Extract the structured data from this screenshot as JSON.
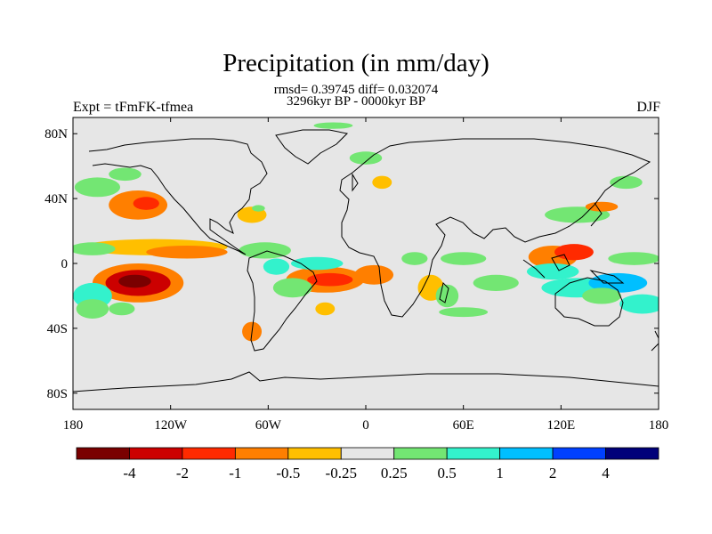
{
  "title": "Precipitation (in mm/day)",
  "stats_line": "rmsd= 0.39745 diff= 0.032074",
  "period_line": "3296kyr BP - 0000kyr BP",
  "experiment_label": "Expt = tFmFK-tfmea",
  "season_label": "DJF",
  "map": {
    "projection": "cylindrical-equidistant",
    "lon_range": [
      -180,
      180
    ],
    "lat_range": [
      -90,
      90
    ],
    "background_color": "#e6e6e6",
    "x_ticks": [
      {
        "lon": -180,
        "label": "180"
      },
      {
        "lon": -120,
        "label": "120W"
      },
      {
        "lon": -60,
        "label": "60W"
      },
      {
        "lon": 0,
        "label": "0"
      },
      {
        "lon": 60,
        "label": "60E"
      },
      {
        "lon": 120,
        "label": "120E"
      },
      {
        "lon": 180,
        "label": "180"
      }
    ],
    "y_ticks": [
      {
        "lat": 80,
        "label": "80N"
      },
      {
        "lat": 40,
        "label": "40N"
      },
      {
        "lat": 0,
        "label": "0"
      },
      {
        "lat": -40,
        "label": "40S"
      },
      {
        "lat": -80,
        "label": "80S"
      }
    ]
  },
  "colorbar": {
    "levels": [
      "-4",
      "-2",
      "-1",
      "-0.5",
      "-0.25",
      "0.25",
      "0.5",
      "1",
      "2",
      "4"
    ],
    "colors": [
      "#7a0000",
      "#cc0000",
      "#ff2a00",
      "#ff7f00",
      "#ffbf00",
      "#e6e6e6",
      "#73e673",
      "#33f2cc",
      "#00bfff",
      "#0040ff",
      "#00007a"
    ]
  },
  "anomalies": [
    {
      "lon": -140,
      "lat": -12,
      "rx": 28,
      "ry": 12,
      "level": 3
    },
    {
      "lon": -140,
      "lat": -12,
      "rx": 20,
      "ry": 8,
      "level": 1
    },
    {
      "lon": -142,
      "lat": -11,
      "rx": 10,
      "ry": 4,
      "level": 0
    },
    {
      "lon": -130,
      "lat": 10,
      "rx": 45,
      "ry": 5,
      "level": 4
    },
    {
      "lon": -110,
      "lat": 7,
      "rx": 25,
      "ry": 4,
      "level": 3
    },
    {
      "lon": -168,
      "lat": 9,
      "rx": 14,
      "ry": 4,
      "level": 6
    },
    {
      "lon": -168,
      "lat": -20,
      "rx": 12,
      "ry": 8,
      "level": 7
    },
    {
      "lon": -168,
      "lat": -28,
      "rx": 10,
      "ry": 6,
      "level": 6
    },
    {
      "lon": -150,
      "lat": -28,
      "rx": 8,
      "ry": 4,
      "level": 6
    },
    {
      "lon": -140,
      "lat": 36,
      "rx": 18,
      "ry": 9,
      "level": 3
    },
    {
      "lon": -135,
      "lat": 37,
      "rx": 8,
      "ry": 4,
      "level": 2
    },
    {
      "lon": -165,
      "lat": 47,
      "rx": 14,
      "ry": 6,
      "level": 6
    },
    {
      "lon": -148,
      "lat": 55,
      "rx": 10,
      "ry": 4,
      "level": 6
    },
    {
      "lon": -70,
      "lat": 30,
      "rx": 9,
      "ry": 5,
      "level": 4
    },
    {
      "lon": -66,
      "lat": 34,
      "rx": 4,
      "ry": 2,
      "level": 6
    },
    {
      "lon": -62,
      "lat": 8,
      "rx": 16,
      "ry": 5,
      "level": 6
    },
    {
      "lon": -55,
      "lat": -2,
      "rx": 8,
      "ry": 5,
      "level": 7
    },
    {
      "lon": -25,
      "lat": -10,
      "rx": 24,
      "ry": 8,
      "level": 3
    },
    {
      "lon": -22,
      "lat": -10,
      "rx": 14,
      "ry": 4,
      "level": 2
    },
    {
      "lon": -45,
      "lat": -15,
      "rx": 12,
      "ry": 6,
      "level": 6
    },
    {
      "lon": -30,
      "lat": 0,
      "rx": 16,
      "ry": 4,
      "level": 7
    },
    {
      "lon": -25,
      "lat": -28,
      "rx": 6,
      "ry": 4,
      "level": 4
    },
    {
      "lon": -70,
      "lat": -42,
      "rx": 6,
      "ry": 6,
      "level": 3
    },
    {
      "lon": 5,
      "lat": -7,
      "rx": 12,
      "ry": 6,
      "level": 3
    },
    {
      "lon": 40,
      "lat": -15,
      "rx": 8,
      "ry": 8,
      "level": 4
    },
    {
      "lon": 50,
      "lat": -20,
      "rx": 7,
      "ry": 7,
      "level": 6
    },
    {
      "lon": 30,
      "lat": 3,
      "rx": 8,
      "ry": 4,
      "level": 6
    },
    {
      "lon": 60,
      "lat": 3,
      "rx": 14,
      "ry": 4,
      "level": 6
    },
    {
      "lon": 80,
      "lat": -12,
      "rx": 14,
      "ry": 5,
      "level": 6
    },
    {
      "lon": 115,
      "lat": 4,
      "rx": 15,
      "ry": 7,
      "level": 3
    },
    {
      "lon": 128,
      "lat": 7,
      "rx": 12,
      "ry": 5,
      "level": 2
    },
    {
      "lon": 115,
      "lat": -5,
      "rx": 16,
      "ry": 5,
      "level": 7
    },
    {
      "lon": 130,
      "lat": -15,
      "rx": 22,
      "ry": 6,
      "level": 7
    },
    {
      "lon": 155,
      "lat": -12,
      "rx": 18,
      "ry": 6,
      "level": 8
    },
    {
      "lon": 145,
      "lat": -20,
      "rx": 12,
      "ry": 5,
      "level": 6
    },
    {
      "lon": 170,
      "lat": -25,
      "rx": 14,
      "ry": 6,
      "level": 7
    },
    {
      "lon": 165,
      "lat": 3,
      "rx": 16,
      "ry": 4,
      "level": 6
    },
    {
      "lon": 130,
      "lat": 30,
      "rx": 20,
      "ry": 5,
      "level": 6
    },
    {
      "lon": 145,
      "lat": 35,
      "rx": 10,
      "ry": 3,
      "level": 3
    },
    {
      "lon": 160,
      "lat": 50,
      "rx": 10,
      "ry": 4,
      "level": 6
    },
    {
      "lon": 0,
      "lat": 65,
      "rx": 10,
      "ry": 4,
      "level": 6
    },
    {
      "lon": 10,
      "lat": 50,
      "rx": 6,
      "ry": 4,
      "level": 4
    },
    {
      "lon": -20,
      "lat": 85,
      "rx": 12,
      "ry": 2,
      "level": 6
    },
    {
      "lon": 60,
      "lat": -30,
      "rx": 15,
      "ry": 3,
      "level": 6
    }
  ]
}
